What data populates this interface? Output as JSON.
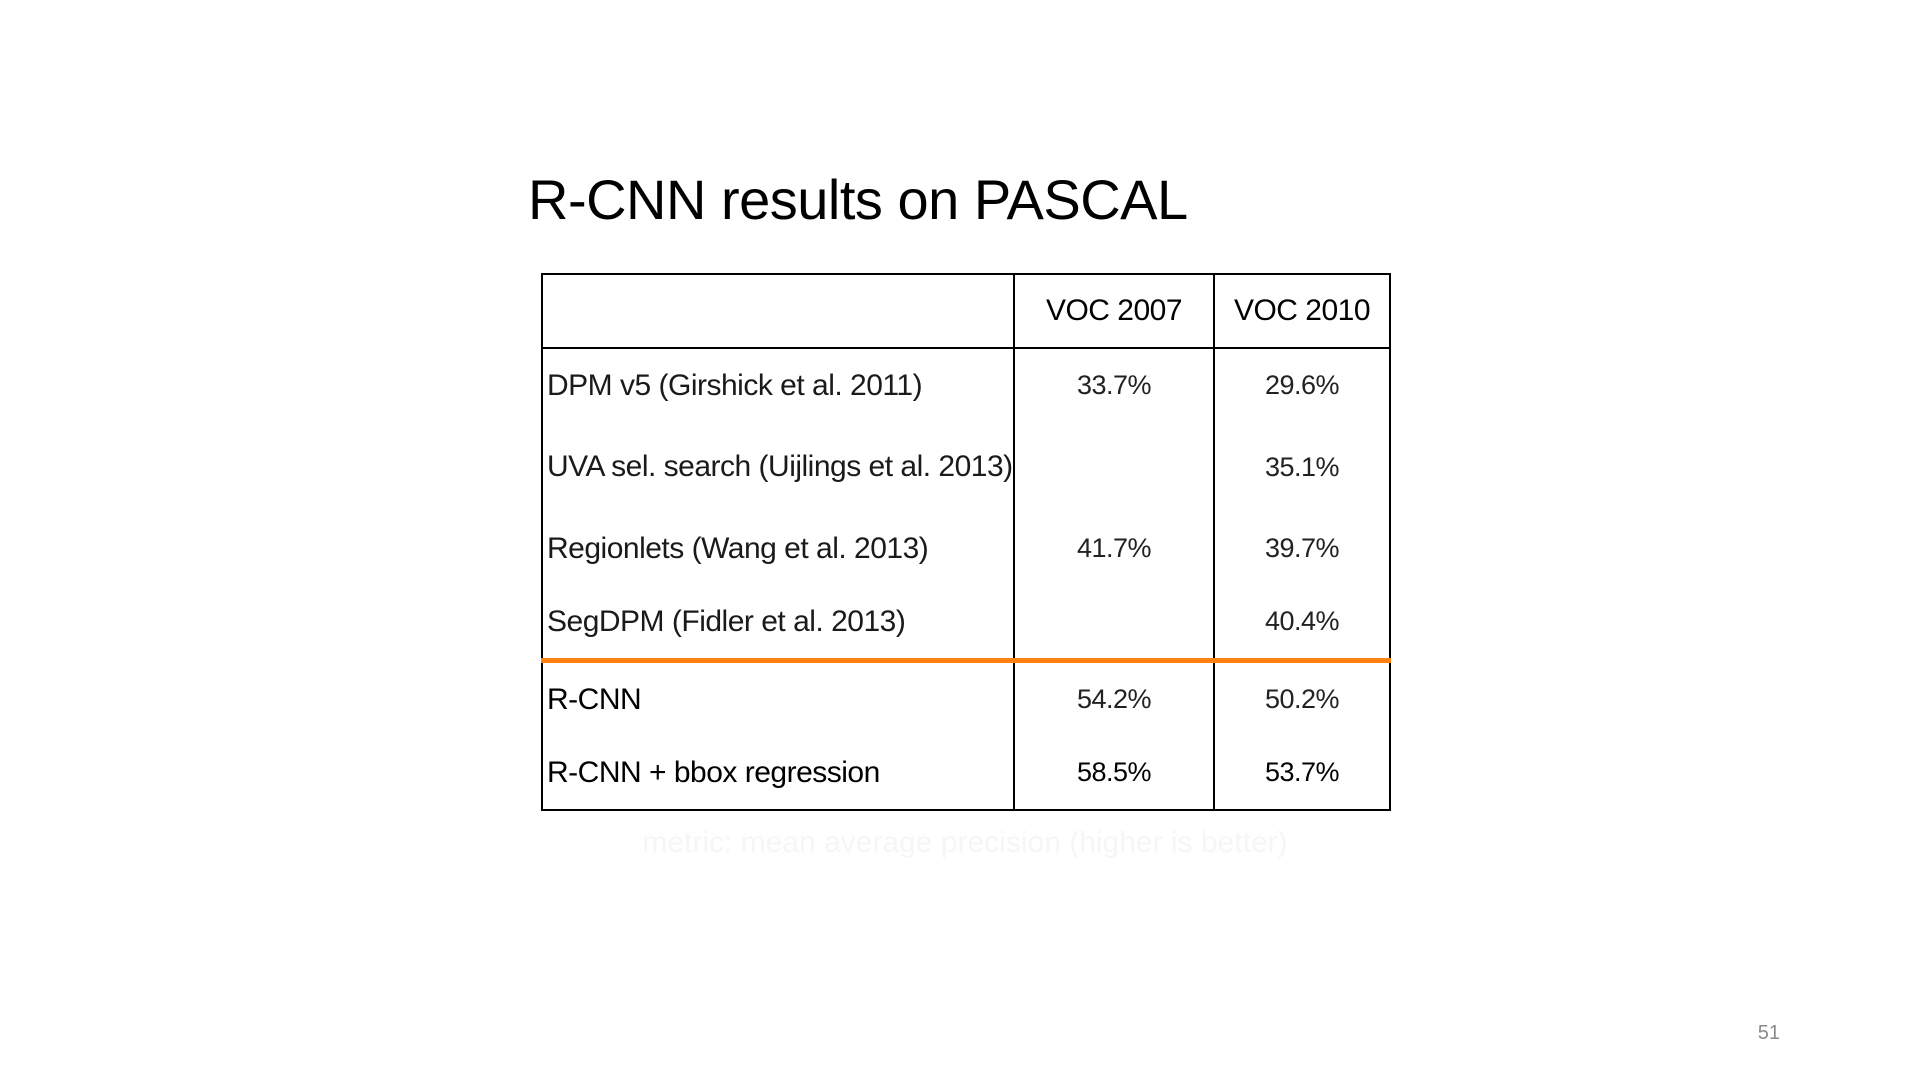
{
  "slide": {
    "title": "R-CNN results on PASCAL",
    "page_number": "51"
  },
  "table": {
    "columns": [
      "",
      "VOC 2007",
      "VOC 2010"
    ],
    "rows": [
      {
        "method": "DPM v5 (Girshick et al. 2011)",
        "voc2007": "33.7%",
        "voc2010": "29.6%"
      },
      {
        "method": "UVA sel. search (Uijlings et al. 2013)",
        "voc2007": "",
        "voc2010": "35.1%"
      },
      {
        "method": "Regionlets (Wang et al. 2013)",
        "voc2007": "41.7%",
        "voc2010": "39.7%"
      },
      {
        "method": "SegDPM (Fidler et al. 2013)",
        "voc2007": "",
        "voc2010": "40.4%"
      },
      {
        "method": "R-CNN",
        "voc2007": "54.2%",
        "voc2010": "50.2%"
      },
      {
        "method": "R-CNN + bbox regression",
        "voc2007": "58.5%",
        "voc2010": "53.7%"
      }
    ]
  },
  "note": "metric: mean average precision (higher is better)",
  "colors": {
    "separator": "#ff8210",
    "page_number": "#8a8a8a"
  }
}
